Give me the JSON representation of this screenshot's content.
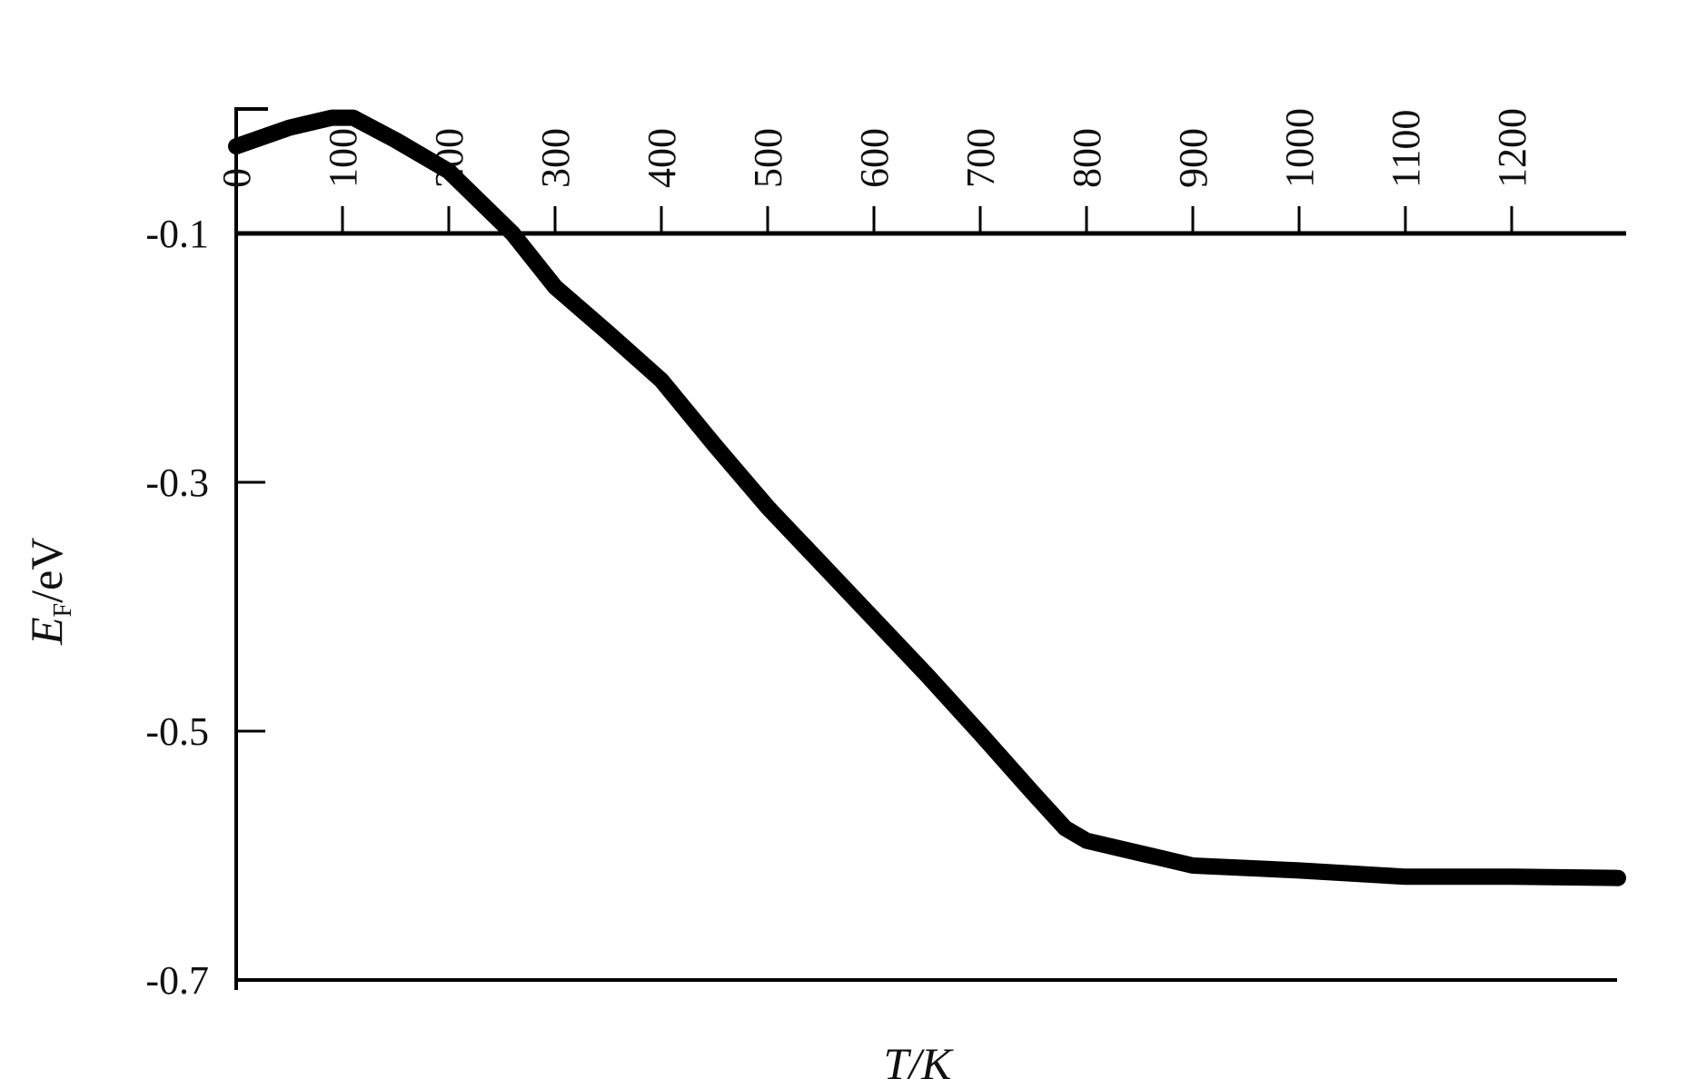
{
  "chart_data": {
    "type": "line",
    "xlabel": "T/K",
    "ylabel": {
      "symbol": "E",
      "subscript": "F",
      "unit": "/eV"
    },
    "xlim": [
      0,
      1300
    ],
    "ylim": [
      -0.7,
      0.0
    ],
    "x_ticks": [
      0,
      100,
      200,
      300,
      400,
      500,
      600,
      700,
      800,
      900,
      1000,
      1100,
      1200
    ],
    "x_tick_labels": [
      "0",
      "100",
      "200",
      "300",
      "400",
      "500",
      "600",
      "700",
      "800",
      "900",
      "1000",
      "1100",
      "1200"
    ],
    "y_ticks": [
      -0.1,
      -0.3,
      -0.5,
      -0.7
    ],
    "y_tick_labels": [
      "-0.1",
      "-0.3",
      "-0.5",
      "-0.7"
    ],
    "grid": false,
    "line_color": "#000000",
    "series": [
      {
        "x": [
          0,
          50,
          90,
          110,
          150,
          200,
          260,
          300,
          350,
          400,
          450,
          500,
          550,
          600,
          650,
          700,
          750,
          780,
          800,
          850,
          900,
          1000,
          1100,
          1200,
          1300
        ],
        "y": [
          -0.03,
          -0.015,
          -0.007,
          -0.007,
          -0.025,
          -0.05,
          -0.1,
          -0.143,
          -0.18,
          -0.218,
          -0.27,
          -0.32,
          -0.365,
          -0.41,
          -0.455,
          -0.502,
          -0.55,
          -0.578,
          -0.588,
          -0.598,
          -0.608,
          -0.612,
          -0.617,
          -0.617,
          -0.618
        ]
      }
    ]
  }
}
